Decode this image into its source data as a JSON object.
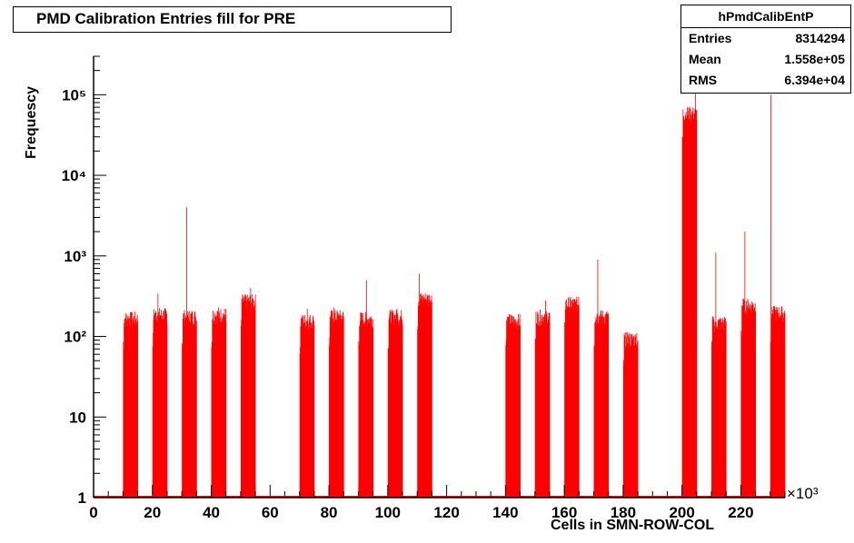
{
  "title": "PMD Calibration Entries fill for PRE",
  "stats": {
    "name": "hPmdCalibEntP",
    "rows": [
      {
        "label": "Entries",
        "value": "8314294"
      },
      {
        "label": "Mean",
        "value": "1.558e+05"
      },
      {
        "label": "RMS",
        "value": "6.394e+04"
      }
    ]
  },
  "colors": {
    "bars": "#ff0000",
    "axis": "#000000",
    "background": "#ffffff"
  },
  "chart_data": {
    "type": "bar",
    "title": "PMD Calibration Entries fill for PRE",
    "xlabel": "Cells in SMN-ROW-COL",
    "ylabel": "Frequescy",
    "x_multiplier": "×10³",
    "xlim": [
      0,
      235
    ],
    "ylim": [
      1,
      300000
    ],
    "yscale": "log",
    "xticks": [
      0,
      20,
      40,
      60,
      80,
      100,
      120,
      140,
      160,
      180,
      200,
      220
    ],
    "xtick_labels": [
      "0",
      "20",
      "40",
      "60",
      "80",
      "100",
      "120",
      "140",
      "160",
      "180",
      "200",
      "220"
    ],
    "yticks": [
      1,
      10,
      100,
      1000,
      10000,
      100000
    ],
    "ytick_labels": [
      "1",
      "10",
      "10²",
      "10³",
      "10⁴",
      "10⁵"
    ],
    "grid": false,
    "series": [
      {
        "values_note_free": true,
        "clusters": [
          {
            "range": [
              10,
              15
            ],
            "level": 170,
            "peak": 200
          },
          {
            "range": [
              20,
              25
            ],
            "level": 190,
            "peak": 340
          },
          {
            "range": [
              30,
              35
            ],
            "level": 180,
            "peak": 4000
          },
          {
            "range": [
              40,
              45
            ],
            "level": 190,
            "peak": 230
          },
          {
            "range": [
              50,
              55
            ],
            "level": 280,
            "peak": 400
          },
          {
            "range": [
              70,
              75
            ],
            "level": 160,
            "peak": 220
          },
          {
            "range": [
              80,
              85
            ],
            "level": 180,
            "peak": 230
          },
          {
            "range": [
              90,
              95
            ],
            "level": 170,
            "peak": 500
          },
          {
            "range": [
              100,
              105
            ],
            "level": 180,
            "peak": 220
          },
          {
            "range": [
              110,
              115
            ],
            "level": 300,
            "peak": 600
          },
          {
            "range": [
              140,
              145
            ],
            "level": 160,
            "peak": 180
          },
          {
            "range": [
              150,
              155
            ],
            "level": 180,
            "peak": 280
          },
          {
            "range": [
              160,
              165
            ],
            "level": 260,
            "peak": 310
          },
          {
            "range": [
              170,
              175
            ],
            "level": 180,
            "peak": 900
          },
          {
            "range": [
              180,
              185
            ],
            "level": 95,
            "peak": 110
          },
          {
            "range": [
              200,
              205
            ],
            "level": 60000,
            "peak": 150000
          },
          {
            "range": [
              210,
              215
            ],
            "level": 150,
            "peak": 1100
          },
          {
            "range": [
              220,
              225
            ],
            "level": 250,
            "peak": 2000
          },
          {
            "range": [
              230,
              235
            ],
            "level": 200,
            "peak": 200000
          }
        ]
      }
    ]
  }
}
